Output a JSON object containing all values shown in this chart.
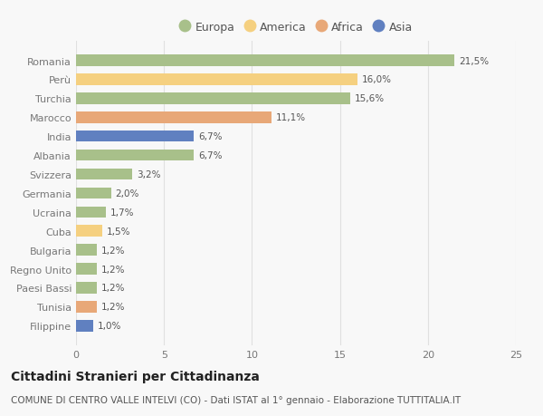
{
  "categories": [
    "Romania",
    "Perù",
    "Turchia",
    "Marocco",
    "India",
    "Albania",
    "Svizzera",
    "Germania",
    "Ucraina",
    "Cuba",
    "Bulgaria",
    "Regno Unito",
    "Paesi Bassi",
    "Tunisia",
    "Filippine"
  ],
  "values": [
    21.5,
    16.0,
    15.6,
    11.1,
    6.7,
    6.7,
    3.2,
    2.0,
    1.7,
    1.5,
    1.2,
    1.2,
    1.2,
    1.2,
    1.0
  ],
  "labels": [
    "21,5%",
    "16,0%",
    "15,6%",
    "11,1%",
    "6,7%",
    "6,7%",
    "3,2%",
    "2,0%",
    "1,7%",
    "1,5%",
    "1,2%",
    "1,2%",
    "1,2%",
    "1,2%",
    "1,0%"
  ],
  "continents": [
    "Europa",
    "America",
    "Europa",
    "Africa",
    "Asia",
    "Europa",
    "Europa",
    "Europa",
    "Europa",
    "America",
    "Europa",
    "Europa",
    "Europa",
    "Africa",
    "Asia"
  ],
  "continent_colors": {
    "Europa": "#a8c08a",
    "America": "#f5d080",
    "Africa": "#e8a878",
    "Asia": "#6080c0"
  },
  "legend_order": [
    "Europa",
    "America",
    "Africa",
    "Asia"
  ],
  "title": "Cittadini Stranieri per Cittadinanza",
  "subtitle": "COMUNE DI CENTRO VALLE INTELVI (CO) - Dati ISTAT al 1° gennaio - Elaborazione TUTTITALIA.IT",
  "xlim": [
    0,
    25
  ],
  "xticks": [
    0,
    5,
    10,
    15,
    20,
    25
  ],
  "background_color": "#f8f8f8",
  "grid_color": "#e0e0e0",
  "bar_height": 0.6,
  "label_fontsize": 7.5,
  "title_fontsize": 10,
  "subtitle_fontsize": 7.5,
  "ytick_fontsize": 8,
  "xtick_fontsize": 8,
  "legend_fontsize": 9
}
